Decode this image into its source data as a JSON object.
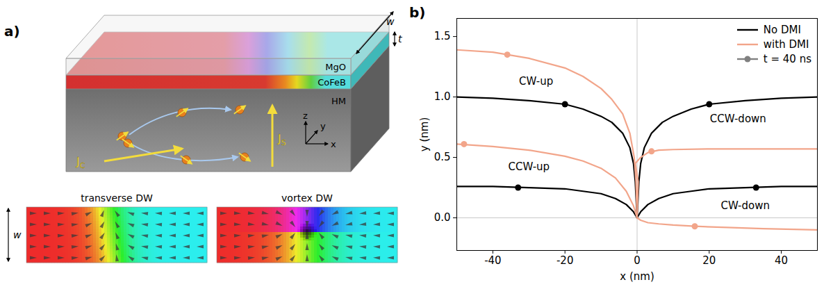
{
  "panel_a": {
    "letter": "a)",
    "layers": [
      "MgO",
      "CoFeB",
      "HM"
    ],
    "dimensions": {
      "width": "w",
      "thickness": "t"
    },
    "axes": [
      "x",
      "y",
      "z"
    ],
    "currents": [
      {
        "symbol": "J",
        "subscript": "C"
      },
      {
        "symbol": "J",
        "subscript": "S"
      }
    ],
    "insets": [
      {
        "title": "transverse DW"
      },
      {
        "title": "vortex DW"
      }
    ],
    "inset_width": "w"
  },
  "chart_data": {
    "type": "line",
    "letter": "b)",
    "xlabel": "x (nm)",
    "ylabel": "y (nm)",
    "xlim": [
      -50,
      50
    ],
    "ylim": [
      -0.27,
      1.65
    ],
    "xticks": [
      -40,
      -20,
      0,
      20,
      40
    ],
    "yticks": [
      {
        "value": 0,
        "label": "0.0"
      },
      {
        "value": 0.5,
        "label": "0.5"
      },
      {
        "value": 1,
        "label": "1.0"
      },
      {
        "value": 1.5,
        "label": "1.5"
      }
    ],
    "legend": "top-right",
    "reference_lines": {
      "x": [
        0
      ],
      "y": [
        0
      ]
    },
    "series": [
      {
        "name": "No DMI",
        "color": "#000000",
        "curves": [
          {
            "x": [
              0,
              -0.5,
              -1,
              -2,
              -4,
              -7,
              -10,
              -15,
              -20,
              -30,
              -40,
              -50
            ],
            "y": [
              0,
              0.3,
              0.45,
              0.58,
              0.7,
              0.79,
              0.84,
              0.9,
              0.94,
              0.97,
              0.99,
              1.0
            ]
          },
          {
            "x": [
              0,
              0.5,
              1,
              2,
              4,
              7,
              10,
              15,
              20,
              30,
              40,
              50
            ],
            "y": [
              0,
              0.3,
              0.45,
              0.58,
              0.7,
              0.79,
              0.84,
              0.9,
              0.94,
              0.97,
              0.99,
              1.0
            ]
          },
          {
            "x": [
              0,
              -1,
              -3,
              -6,
              -10,
              -15,
              -20,
              -30,
              -40,
              -50
            ],
            "y": [
              0,
              0.05,
              0.11,
              0.16,
              0.2,
              0.22,
              0.24,
              0.25,
              0.26,
              0.26
            ]
          },
          {
            "x": [
              0,
              1,
              3,
              6,
              10,
              15,
              20,
              30,
              40,
              50
            ],
            "y": [
              0,
              0.05,
              0.11,
              0.16,
              0.2,
              0.22,
              0.24,
              0.25,
              0.26,
              0.26
            ]
          }
        ],
        "marker_points": {
          "x": [
            -20,
            20,
            -33,
            33
          ],
          "y": [
            0.94,
            0.94,
            0.25,
            0.25
          ]
        }
      },
      {
        "name": "with DMI",
        "color": "#f2a58a",
        "curves": [
          {
            "x": [
              0,
              -0.3,
              -0.8,
              -2,
              -4,
              -7,
              -10,
              -15,
              -20,
              -30,
              -40,
              -50
            ],
            "y": [
              0,
              0.3,
              0.5,
              0.7,
              0.86,
              0.98,
              1.07,
              1.17,
              1.24,
              1.32,
              1.37,
              1.39
            ]
          },
          {
            "x": [
              0,
              -1,
              -3,
              -6,
              -10,
              -15,
              -20,
              -30,
              -40,
              -50
            ],
            "y": [
              0,
              0.1,
              0.22,
              0.33,
              0.41,
              0.47,
              0.51,
              0.56,
              0.59,
              0.61
            ]
          },
          {
            "x": [
              0,
              0.3,
              -0.5,
              1,
              3,
              6,
              10,
              20,
              30,
              40,
              50
            ],
            "y": [
              0,
              0.3,
              0.45,
              0.5,
              0.54,
              0.56,
              0.565,
              0.57,
              0.57,
              0.57,
              0.57
            ]
          },
          {
            "x": [
              0,
              1,
              3,
              6,
              10,
              16,
              25,
              35,
              50
            ],
            "y": [
              0,
              -0.02,
              -0.04,
              -0.05,
              -0.06,
              -0.07,
              -0.08,
              -0.09,
              -0.1
            ]
          }
        ],
        "marker_points": {
          "x": [
            -36,
            -48,
            4,
            16
          ],
          "y": [
            1.35,
            0.61,
            0.55,
            -0.07
          ]
        }
      }
    ],
    "marker_series": {
      "name": "t = 40 ns",
      "color": "#808080",
      "marker": "circle"
    },
    "annotations": [
      {
        "text": "CW-up",
        "x": -28,
        "y": 1.13
      },
      {
        "text": "CCW-down",
        "x": 28,
        "y": 0.82
      },
      {
        "text": "CCW-up",
        "x": -30,
        "y": 0.42
      },
      {
        "text": "CW-down",
        "x": 30,
        "y": 0.1
      }
    ]
  }
}
